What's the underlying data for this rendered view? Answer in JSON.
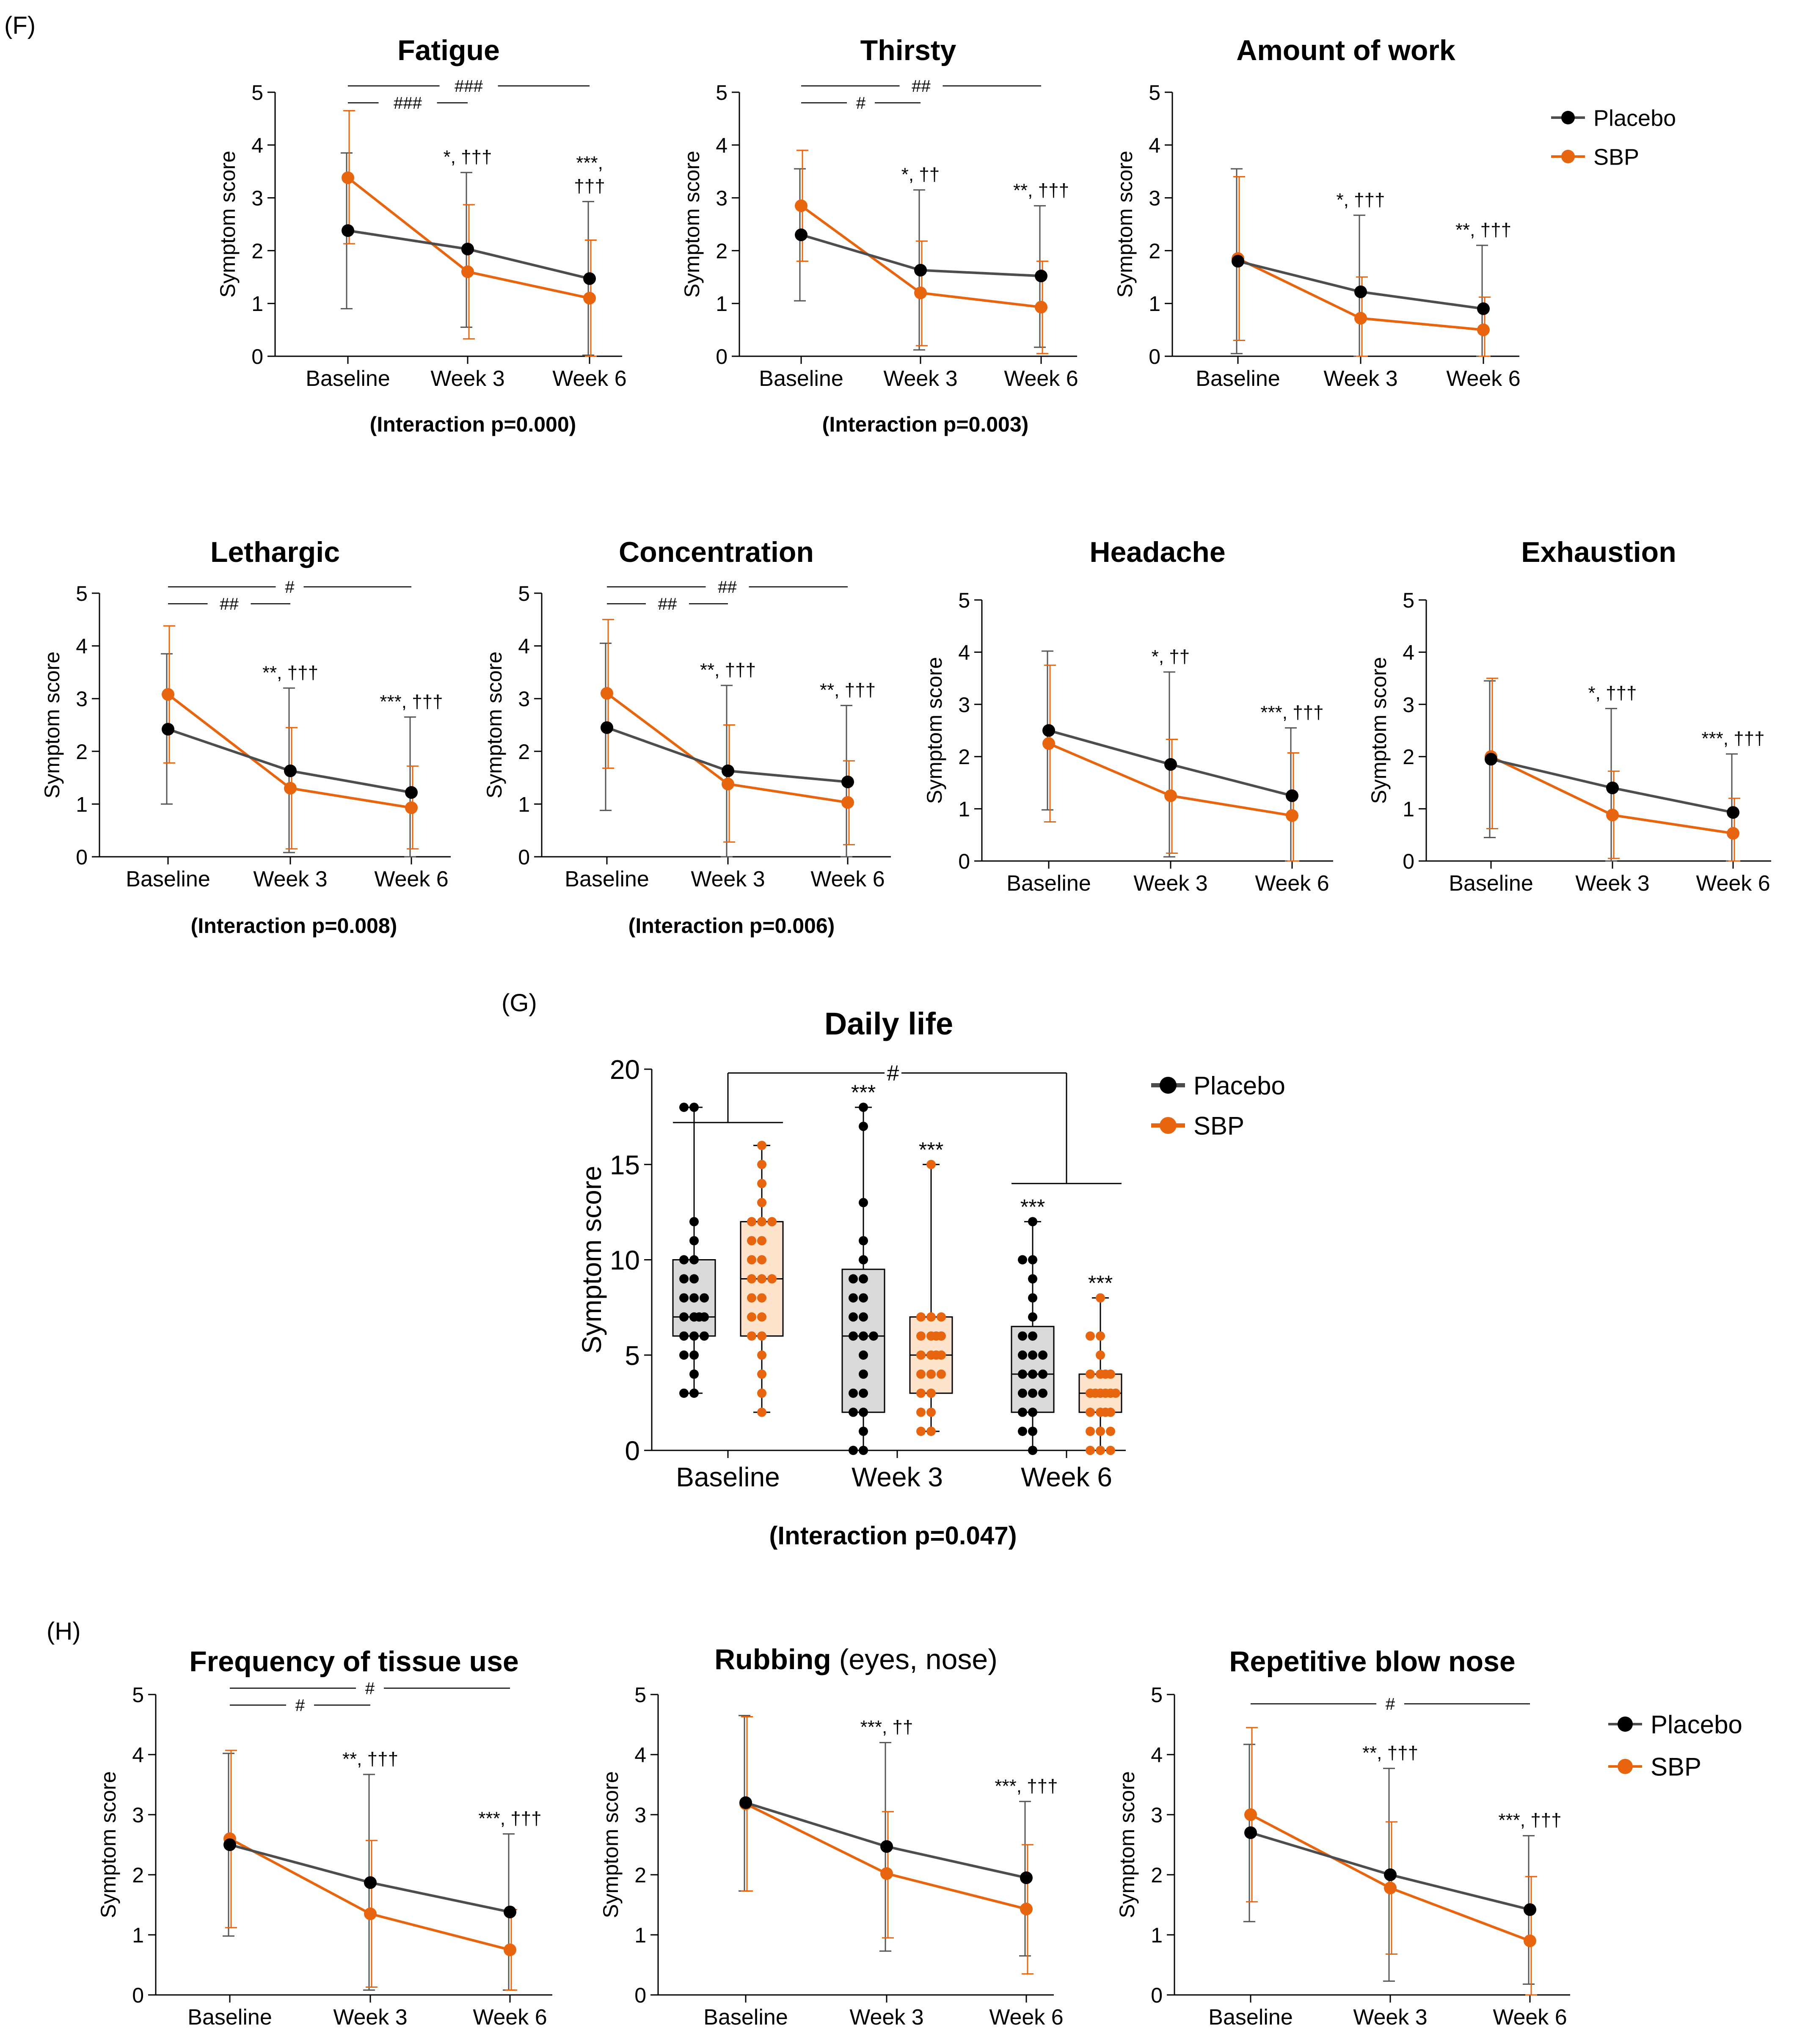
{
  "colors": {
    "placebo": "#000000",
    "placebo_line": "#4d4d4d",
    "sbp": "#e8650f",
    "placebo_box": "#d9d9d9",
    "sbp_box": "#fde3cc"
  },
  "panels": {
    "F": "(F)",
    "G": "(G)",
    "H": "(H)"
  },
  "legend": {
    "placebo": "Placebo",
    "sbp": "SBP"
  },
  "chart_data": [
    {
      "id": "fatigue",
      "type": "line",
      "title": "Fatigue",
      "ylabel": "Symptom score",
      "categories": [
        "Baseline",
        "Week 3",
        "Week 6"
      ],
      "ylim": [
        0,
        5
      ],
      "yticks": [
        "0",
        "1",
        "2",
        "3",
        "4",
        "5"
      ],
      "series": [
        {
          "name": "Placebo",
          "values": [
            2.38,
            2.03,
            1.47
          ],
          "upper": [
            3.85,
            3.48,
            2.93
          ],
          "lower": [
            0.9,
            0.55,
            0.02
          ]
        },
        {
          "name": "SBP",
          "values": [
            3.38,
            1.6,
            1.1
          ],
          "upper": [
            4.65,
            2.87,
            2.2
          ],
          "lower": [
            2.13,
            0.33,
            0.0
          ]
        }
      ],
      "annotations": [
        [
          "*, †††"
        ],
        [
          "***,",
          "†††"
        ]
      ],
      "brackets": [
        {
          "label": "###",
          "from": 0,
          "to": 1
        },
        {
          "label": "###",
          "from": 0,
          "to": 2
        }
      ],
      "interaction": "(Interaction p=0.000)"
    },
    {
      "id": "thirsty",
      "type": "line",
      "title": "Thirsty",
      "ylabel": "Symptom score",
      "categories": [
        "Baseline",
        "Week 3",
        "Week 6"
      ],
      "ylim": [
        0,
        5
      ],
      "yticks": [
        "0",
        "1",
        "2",
        "3",
        "4",
        "5"
      ],
      "series": [
        {
          "name": "Placebo",
          "values": [
            2.3,
            1.63,
            1.52
          ],
          "upper": [
            3.55,
            3.15,
            2.85
          ],
          "lower": [
            1.05,
            0.12,
            0.17
          ]
        },
        {
          "name": "SBP",
          "values": [
            2.85,
            1.2,
            0.93
          ],
          "upper": [
            3.9,
            2.18,
            1.8
          ],
          "lower": [
            1.8,
            0.2,
            0.05
          ]
        }
      ],
      "annotations": [
        [
          "*, ††"
        ],
        [
          "**, †††"
        ]
      ],
      "brackets": [
        {
          "label": "#",
          "from": 0,
          "to": 1
        },
        {
          "label": "##",
          "from": 0,
          "to": 2
        }
      ],
      "interaction": "(Interaction p=0.003)"
    },
    {
      "id": "work",
      "type": "line",
      "title": "Amount of work",
      "ylabel": "Symptom score",
      "categories": [
        "Baseline",
        "Week 3",
        "Week 6"
      ],
      "ylim": [
        0,
        5
      ],
      "yticks": [
        "0",
        "1",
        "2",
        "3",
        "4",
        "5"
      ],
      "series": [
        {
          "name": "Placebo",
          "values": [
            1.8,
            1.22,
            0.9
          ],
          "upper": [
            3.55,
            2.67,
            2.1
          ],
          "lower": [
            0.05,
            0.0,
            0.0
          ]
        },
        {
          "name": "SBP",
          "values": [
            1.85,
            0.72,
            0.5
          ],
          "upper": [
            3.4,
            1.5,
            1.12
          ],
          "lower": [
            0.3,
            0.0,
            0.0
          ]
        }
      ],
      "annotations": [
        [
          "*, †††"
        ],
        [
          "**, †††"
        ]
      ],
      "brackets": [],
      "interaction": ""
    },
    {
      "id": "lethargic",
      "type": "line",
      "title": "Lethargic",
      "ylabel": "Symptom score",
      "categories": [
        "Baseline",
        "Week 3",
        "Week 6"
      ],
      "ylim": [
        0,
        5
      ],
      "yticks": [
        "0",
        "1",
        "2",
        "3",
        "4",
        "5"
      ],
      "series": [
        {
          "name": "Placebo",
          "values": [
            2.42,
            1.63,
            1.22
          ],
          "upper": [
            3.85,
            3.2,
            2.65
          ],
          "lower": [
            1.0,
            0.08,
            0.0
          ]
        },
        {
          "name": "SBP",
          "values": [
            3.08,
            1.3,
            0.93
          ],
          "upper": [
            4.38,
            2.45,
            1.72
          ],
          "lower": [
            1.78,
            0.15,
            0.15
          ]
        }
      ],
      "annotations": [
        [
          "**, †††"
        ],
        [
          "***, †††"
        ]
      ],
      "brackets": [
        {
          "label": "##",
          "from": 0,
          "to": 1
        },
        {
          "label": "#",
          "from": 0,
          "to": 2
        }
      ],
      "interaction": "(Interaction p=0.008)"
    },
    {
      "id": "concentration",
      "type": "line",
      "title": "Concentration",
      "ylabel": "Symptom score",
      "categories": [
        "Baseline",
        "Week 3",
        "Week 6"
      ],
      "ylim": [
        0,
        5
      ],
      "yticks": [
        "0",
        "1",
        "2",
        "3",
        "4",
        "5"
      ],
      "series": [
        {
          "name": "Placebo",
          "values": [
            2.45,
            1.63,
            1.42
          ],
          "upper": [
            4.05,
            3.25,
            2.87
          ],
          "lower": [
            0.88,
            0.0,
            0.0
          ]
        },
        {
          "name": "SBP",
          "values": [
            3.1,
            1.38,
            1.03
          ],
          "upper": [
            4.5,
            2.5,
            1.82
          ],
          "lower": [
            1.68,
            0.28,
            0.23
          ]
        }
      ],
      "annotations": [
        [
          "**, †††"
        ],
        [
          "**, †††"
        ]
      ],
      "brackets": [
        {
          "label": "##",
          "from": 0,
          "to": 1
        },
        {
          "label": "##",
          "from": 0,
          "to": 2
        }
      ],
      "interaction": "(Interaction p=0.006)"
    },
    {
      "id": "headache",
      "type": "line",
      "title": "Headache",
      "ylabel": "Symptom score",
      "categories": [
        "Baseline",
        "Week 3",
        "Week 6"
      ],
      "ylim": [
        0,
        5
      ],
      "yticks": [
        "0",
        "1",
        "2",
        "3",
        "4",
        "5"
      ],
      "series": [
        {
          "name": "Placebo",
          "values": [
            2.5,
            1.85,
            1.25
          ],
          "upper": [
            4.02,
            3.62,
            2.55
          ],
          "lower": [
            0.98,
            0.08,
            0.0
          ]
        },
        {
          "name": "SBP",
          "values": [
            2.25,
            1.25,
            0.87
          ],
          "upper": [
            3.75,
            2.33,
            2.07
          ],
          "lower": [
            0.75,
            0.15,
            0.0
          ]
        }
      ],
      "annotations": [
        [
          "*, ††"
        ],
        [
          "***, †††"
        ]
      ],
      "brackets": [],
      "interaction": ""
    },
    {
      "id": "exhaustion",
      "type": "line",
      "title": "Exhaustion",
      "ylabel": "Symptom score",
      "categories": [
        "Baseline",
        "Week 3",
        "Week 6"
      ],
      "ylim": [
        0,
        5
      ],
      "yticks": [
        "0",
        "1",
        "2",
        "3",
        "4",
        "5"
      ],
      "series": [
        {
          "name": "Placebo",
          "values": [
            1.95,
            1.4,
            0.93
          ],
          "upper": [
            3.45,
            2.92,
            2.05
          ],
          "lower": [
            0.45,
            0.0,
            0.0
          ]
        },
        {
          "name": "SBP",
          "values": [
            2.0,
            0.88,
            0.53
          ],
          "upper": [
            3.5,
            1.72,
            1.2
          ],
          "lower": [
            0.62,
            0.05,
            0.0
          ]
        }
      ],
      "annotations": [
        [
          "*, †††"
        ],
        [
          "***, †††"
        ]
      ],
      "brackets": [],
      "interaction": ""
    },
    {
      "id": "daily",
      "type": "box",
      "title": "Daily life",
      "ylabel": "Symptom score",
      "categories": [
        "Baseline",
        "Week 3",
        "Week 6"
      ],
      "ylim": [
        0,
        20
      ],
      "yticks": [
        "0",
        "5",
        "10",
        "15",
        "20"
      ],
      "series": [
        {
          "name": "Placebo",
          "boxes": [
            {
              "min": 3,
              "q1": 6,
              "median": 7,
              "q3": 10,
              "max": 18,
              "points": [
                3,
                3,
                4,
                5,
                5,
                6,
                6,
                6,
                7,
                7,
                7,
                7,
                8,
                8,
                8,
                9,
                9,
                10,
                10,
                11,
                12,
                18,
                18
              ]
            },
            {
              "min": 0,
              "q1": 2,
              "median": 6,
              "q3": 9.5,
              "max": 18,
              "points": [
                0,
                0,
                1,
                2,
                2,
                3,
                3,
                4,
                5,
                6,
                6,
                6,
                7,
                7,
                8,
                8,
                9,
                9,
                10,
                11,
                13,
                17,
                18
              ]
            },
            {
              "min": 0,
              "q1": 2,
              "median": 4,
              "q3": 6.5,
              "max": 12,
              "points": [
                0,
                1,
                1,
                2,
                2,
                3,
                3,
                3,
                4,
                4,
                4,
                5,
                5,
                5,
                6,
                6,
                7,
                8,
                9,
                10,
                10,
                12
              ]
            }
          ]
        },
        {
          "name": "SBP",
          "boxes": [
            {
              "min": 2,
              "q1": 6,
              "median": 9,
              "q3": 12,
              "max": 16,
              "points": [
                2,
                3,
                4,
                5,
                6,
                6,
                7,
                7,
                8,
                8,
                9,
                9,
                9,
                10,
                10,
                11,
                11,
                12,
                12,
                12,
                13,
                14,
                15,
                16
              ]
            },
            {
              "min": 1,
              "q1": 3,
              "median": 5,
              "q3": 7,
              "max": 15,
              "points": [
                1,
                1,
                2,
                2,
                3,
                3,
                4,
                4,
                4,
                5,
                5,
                5,
                5,
                6,
                6,
                6,
                6,
                7,
                7,
                7,
                15
              ]
            },
            {
              "min": 0,
              "q1": 2,
              "median": 3,
              "q3": 4,
              "max": 8,
              "points": [
                0,
                0,
                0,
                1,
                1,
                1,
                2,
                2,
                2,
                2,
                3,
                3,
                3,
                3,
                3,
                3,
                4,
                4,
                4,
                4,
                5,
                6,
                6,
                8
              ]
            }
          ]
        }
      ],
      "annotations": [
        "***",
        "***",
        "***",
        "***"
      ],
      "brackets": [
        {
          "label": "#"
        }
      ],
      "interaction": "(Interaction p=0.047)"
    },
    {
      "id": "tissue",
      "type": "line",
      "title": "Frequency of tissue use",
      "title_extra": "",
      "ylabel": "Symptom score",
      "categories": [
        "Baseline",
        "Week 3",
        "Week 6"
      ],
      "ylim": [
        0,
        5
      ],
      "yticks": [
        "0",
        "1",
        "2",
        "3",
        "4",
        "5"
      ],
      "series": [
        {
          "name": "Placebo",
          "values": [
            2.5,
            1.87,
            1.38
          ],
          "upper": [
            4.02,
            3.67,
            2.68
          ],
          "lower": [
            0.98,
            0.08,
            0.08
          ]
        },
        {
          "name": "SBP",
          "values": [
            2.6,
            1.35,
            0.75
          ],
          "upper": [
            4.07,
            2.57,
            1.42
          ],
          "lower": [
            1.12,
            0.13,
            0.08
          ]
        }
      ],
      "annotations": [
        [
          "**, †††"
        ],
        [
          "***, †††"
        ]
      ],
      "brackets": [
        {
          "label": "#",
          "from": 0,
          "to": 1
        },
        {
          "label": "#",
          "from": 0,
          "to": 2
        }
      ],
      "interaction": ""
    },
    {
      "id": "rubbing",
      "type": "line",
      "title": "Rubbing",
      "title_extra": "(eyes, nose)",
      "ylabel": "Symptom score",
      "categories": [
        "Baseline",
        "Week 3",
        "Week 6"
      ],
      "ylim": [
        0,
        5
      ],
      "yticks": [
        "0",
        "1",
        "2",
        "3",
        "4",
        "5"
      ],
      "series": [
        {
          "name": "Placebo",
          "values": [
            3.2,
            2.47,
            1.95
          ],
          "upper": [
            4.65,
            4.2,
            3.22
          ],
          "lower": [
            1.73,
            0.73,
            0.65
          ]
        },
        {
          "name": "SBP",
          "values": [
            3.18,
            2.02,
            1.43
          ],
          "upper": [
            4.63,
            3.05,
            2.5
          ],
          "lower": [
            1.73,
            0.95,
            0.35
          ]
        }
      ],
      "annotations": [
        [
          "***, ††"
        ],
        [
          "***, †††"
        ]
      ],
      "brackets": [],
      "interaction": ""
    },
    {
      "id": "blow",
      "type": "line",
      "title": "Repetitive blow nose",
      "title_extra": "",
      "ylabel": "Symptom score",
      "categories": [
        "Baseline",
        "Week 3",
        "Week 6"
      ],
      "ylim": [
        0,
        5
      ],
      "yticks": [
        "0",
        "1",
        "2",
        "3",
        "4",
        "5"
      ],
      "series": [
        {
          "name": "Placebo",
          "values": [
            2.7,
            2.0,
            1.42
          ],
          "upper": [
            4.17,
            3.77,
            2.65
          ],
          "lower": [
            1.22,
            0.23,
            0.18
          ]
        },
        {
          "name": "SBP",
          "values": [
            3.0,
            1.78,
            0.9
          ],
          "upper": [
            4.45,
            2.88,
            1.97
          ],
          "lower": [
            1.55,
            0.68,
            0.0
          ]
        }
      ],
      "annotations": [
        [
          "**, †††"
        ],
        [
          "***, †††"
        ]
      ],
      "brackets": [
        {
          "label": "#",
          "from": 0,
          "to": 2
        }
      ],
      "interaction": ""
    }
  ]
}
